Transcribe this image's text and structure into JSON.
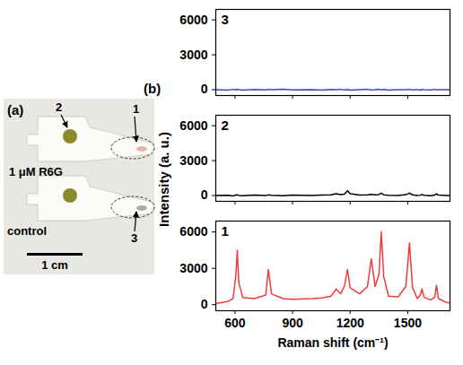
{
  "panel_a": {
    "label": "(a)",
    "texts": [
      "1 μM R6G",
      "control"
    ],
    "scale_bar": "1 cm",
    "markers": [
      "1",
      "2",
      "3"
    ]
  },
  "panel_b": {
    "label": "(b)"
  },
  "chart_data": [
    {
      "type": "line",
      "title": "3",
      "tick_labels": "y",
      "x": [
        500,
        560,
        590,
        605,
        612,
        620,
        640,
        700,
        760,
        774,
        790,
        850,
        900,
        1000,
        1050,
        1100,
        1127,
        1150,
        1170,
        1186,
        1200,
        1250,
        1290,
        1310,
        1330,
        1350,
        1362,
        1375,
        1400,
        1450,
        1490,
        1509,
        1525,
        1550,
        1565,
        1574,
        1585,
        1620,
        1640,
        1650,
        1660,
        1700,
        1720
      ],
      "series": [
        {
          "color": "#3c46b4",
          "values": [
            10,
            -40,
            30,
            -20,
            40,
            0,
            -30,
            20,
            -10,
            30,
            0,
            40,
            -20,
            10,
            -30,
            20,
            0,
            30,
            -10,
            20,
            -40,
            10,
            30,
            -20,
            0,
            40,
            -10,
            20,
            -30,
            10,
            0,
            30,
            -20,
            10,
            -40,
            20,
            0,
            -10,
            30,
            -20,
            10,
            0,
            -30
          ]
        }
      ],
      "xlim": [
        500,
        1720
      ],
      "xticks": [
        600,
        900,
        1200,
        1500
      ],
      "ylim": [
        -500,
        6900
      ],
      "yticks": [
        0,
        3000,
        6000
      ]
    },
    {
      "type": "line",
      "title": "2",
      "tick_labels": "y",
      "ylabel": "Intensity (a. u.)",
      "x": [
        500,
        560,
        590,
        605,
        612,
        620,
        640,
        700,
        760,
        774,
        790,
        850,
        900,
        1000,
        1050,
        1100,
        1127,
        1150,
        1170,
        1186,
        1200,
        1250,
        1290,
        1310,
        1330,
        1350,
        1362,
        1375,
        1400,
        1450,
        1490,
        1509,
        1525,
        1550,
        1565,
        1574,
        1585,
        1620,
        1640,
        1650,
        1660,
        1700,
        1720
      ],
      "series": [
        {
          "color": "#000000",
          "values": [
            0,
            20,
            -30,
            40,
            60,
            10,
            -20,
            30,
            0,
            50,
            20,
            -10,
            30,
            0,
            40,
            60,
            150,
            80,
            120,
            400,
            150,
            40,
            60,
            100,
            50,
            80,
            200,
            60,
            20,
            0,
            70,
            200,
            60,
            10,
            30,
            90,
            20,
            -10,
            40,
            150,
            30,
            0,
            10
          ]
        }
      ],
      "xlim": [
        500,
        1720
      ],
      "xticks": [
        600,
        900,
        1200,
        1500
      ],
      "ylim": [
        -500,
        6900
      ],
      "yticks": [
        0,
        3000,
        6000
      ]
    },
    {
      "type": "line",
      "title": "1",
      "xlabel": "Raman shift (cm⁻¹)",
      "x": [
        500,
        560,
        590,
        605,
        612,
        620,
        640,
        700,
        760,
        774,
        790,
        850,
        900,
        1000,
        1050,
        1100,
        1127,
        1150,
        1170,
        1186,
        1200,
        1250,
        1290,
        1310,
        1330,
        1350,
        1362,
        1375,
        1400,
        1450,
        1490,
        1509,
        1525,
        1550,
        1565,
        1574,
        1585,
        1620,
        1640,
        1650,
        1660,
        1700,
        1720
      ],
      "series": [
        {
          "color": "#f03c3c",
          "values": [
            100,
            250,
            500,
            2500,
            4500,
            1800,
            600,
            500,
            800,
            2900,
            900,
            500,
            450,
            500,
            550,
            700,
            1300,
            900,
            1500,
            2900,
            1400,
            900,
            1500,
            3800,
            1500,
            2500,
            6000,
            2300,
            700,
            650,
            1500,
            5100,
            1400,
            500,
            800,
            1300,
            600,
            400,
            600,
            1600,
            500,
            200,
            150
          ]
        }
      ],
      "xlim": [
        500,
        1720
      ],
      "xticks": [
        600,
        900,
        1200,
        1500
      ],
      "ylim": [
        -500,
        6900
      ],
      "yticks": [
        0,
        3000,
        6000
      ]
    }
  ]
}
